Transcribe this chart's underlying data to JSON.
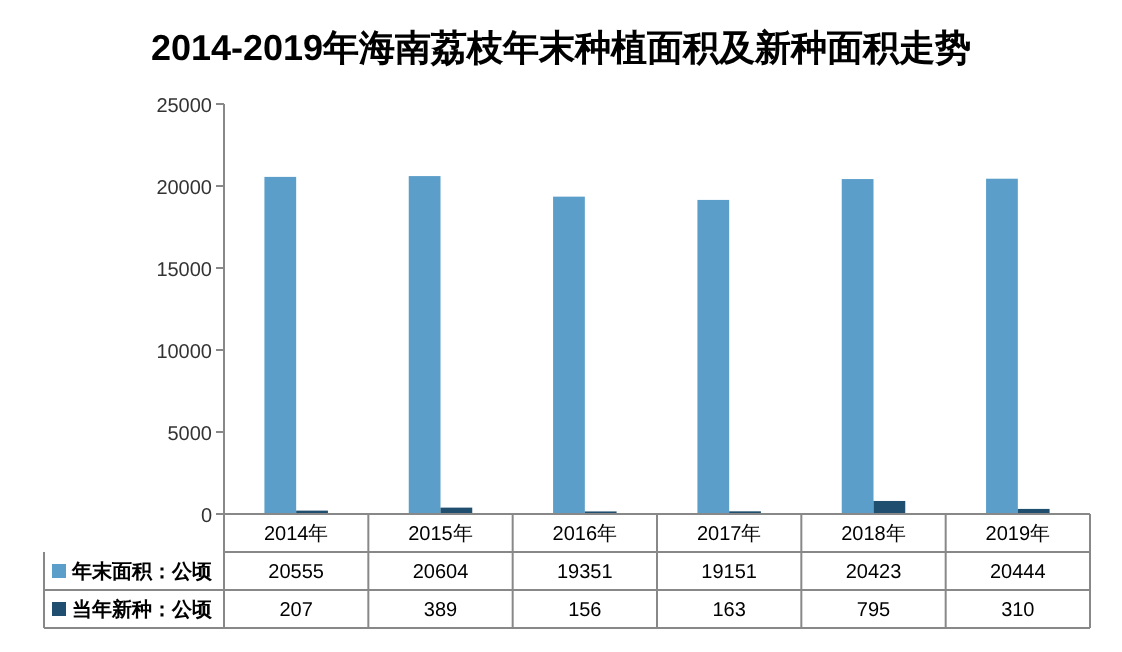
{
  "chart_data": {
    "type": "bar",
    "title": "2014-2019年海南荔枝年末种植面积及新种面积走势",
    "categories": [
      "2014年",
      "2015年",
      "2016年",
      "2017年",
      "2018年",
      "2019年"
    ],
    "series": [
      {
        "name": "年末面积：公顷",
        "color": "#5a9ec9",
        "values": [
          20555,
          20604,
          19351,
          19151,
          20423,
          20444
        ]
      },
      {
        "name": "当年新种：公顷",
        "color": "#1f4e6e",
        "values": [
          207,
          389,
          156,
          163,
          795,
          310
        ]
      }
    ],
    "ylim": [
      0,
      25000
    ],
    "yticks": [
      0,
      5000,
      10000,
      15000,
      20000,
      25000
    ],
    "data_labels": true,
    "legend": "bottom"
  }
}
